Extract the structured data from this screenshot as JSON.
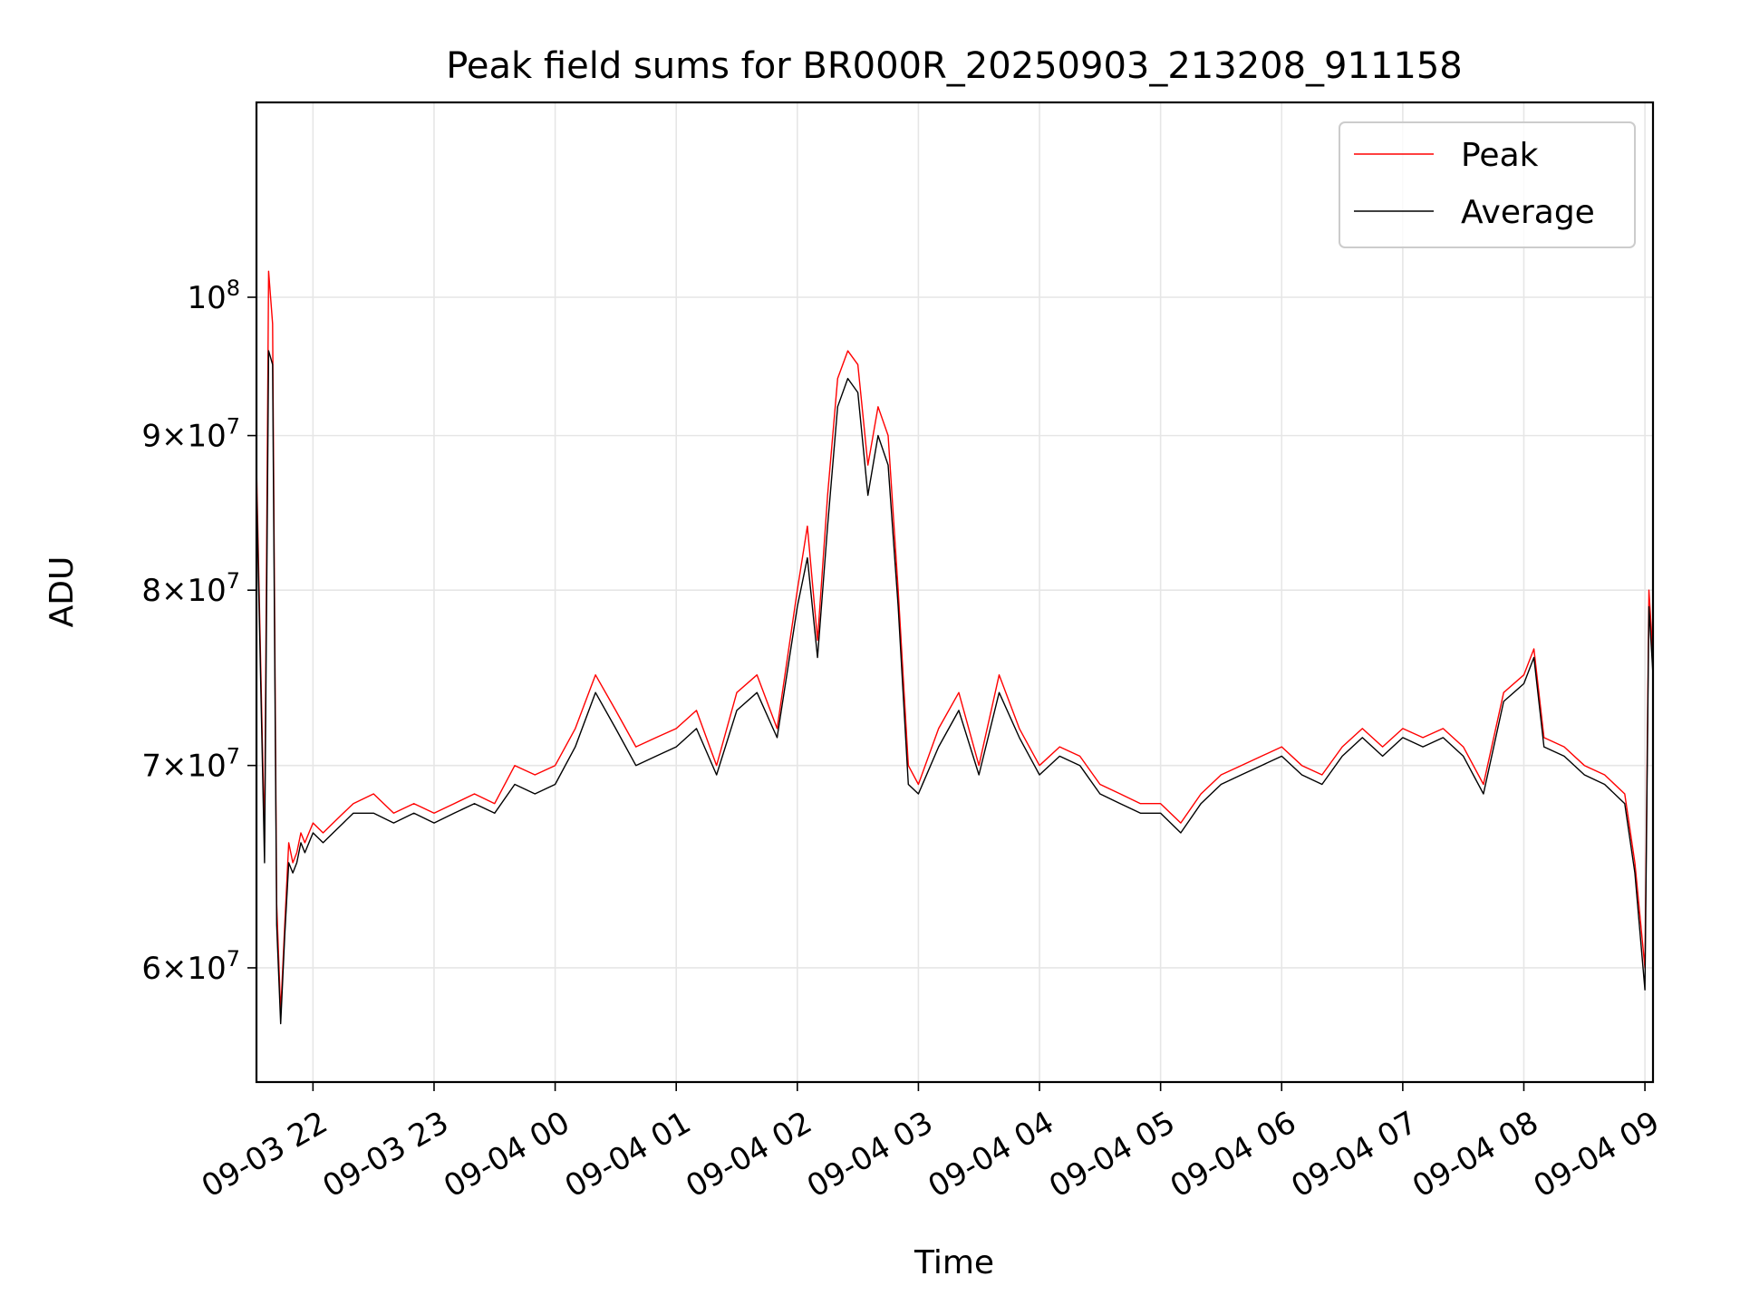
{
  "chart_data": {
    "type": "line",
    "title": "Peak field sums for BR000R_20250903_213208_911158",
    "xlabel": "Time",
    "ylabel": "ADU",
    "yscale": "log",
    "grid": true,
    "legend_position": "upper right",
    "xlim": [
      "2025-09-03 21:32",
      "2025-09-04 09:04"
    ],
    "ylim": [
      55000000,
      116000000
    ],
    "x_ticks": [
      {
        "t": "2025-09-03 22:00",
        "label": "09-03 22"
      },
      {
        "t": "2025-09-03 23:00",
        "label": "09-03 23"
      },
      {
        "t": "2025-09-04 00:00",
        "label": "09-04 00"
      },
      {
        "t": "2025-09-04 01:00",
        "label": "09-04 01"
      },
      {
        "t": "2025-09-04 02:00",
        "label": "09-04 02"
      },
      {
        "t": "2025-09-04 03:00",
        "label": "09-04 03"
      },
      {
        "t": "2025-09-04 04:00",
        "label": "09-04 04"
      },
      {
        "t": "2025-09-04 05:00",
        "label": "09-04 05"
      },
      {
        "t": "2025-09-04 06:00",
        "label": "09-04 06"
      },
      {
        "t": "2025-09-04 07:00",
        "label": "09-04 07"
      },
      {
        "t": "2025-09-04 08:00",
        "label": "09-04 08"
      },
      {
        "t": "2025-09-04 09:00",
        "label": "09-04 09"
      }
    ],
    "y_ticks": [
      {
        "value": 60000000,
        "mant": "6",
        "exp": "7"
      },
      {
        "value": 70000000,
        "mant": "7",
        "exp": "7"
      },
      {
        "value": 80000000,
        "mant": "8",
        "exp": "7"
      },
      {
        "value": 90000000,
        "mant": "9",
        "exp": "7"
      },
      {
        "value": 100000000,
        "mant": "",
        "exp": "8"
      }
    ],
    "series": [
      {
        "name": "Peak",
        "color": "#ff0000",
        "x": [
          "2025-09-03 21:32",
          "2025-09-03 21:34",
          "2025-09-03 21:36",
          "2025-09-03 21:38",
          "2025-09-03 21:40",
          "2025-09-03 21:42",
          "2025-09-03 21:44",
          "2025-09-03 21:46",
          "2025-09-03 21:48",
          "2025-09-03 21:50",
          "2025-09-03 21:52",
          "2025-09-03 21:54",
          "2025-09-03 21:56",
          "2025-09-03 22:00",
          "2025-09-03 22:05",
          "2025-09-03 22:10",
          "2025-09-03 22:15",
          "2025-09-03 22:20",
          "2025-09-03 22:30",
          "2025-09-03 22:40",
          "2025-09-03 22:50",
          "2025-09-03 23:00",
          "2025-09-03 23:10",
          "2025-09-03 23:20",
          "2025-09-03 23:30",
          "2025-09-03 23:40",
          "2025-09-03 23:50",
          "2025-09-04 00:00",
          "2025-09-04 00:10",
          "2025-09-04 00:20",
          "2025-09-04 00:30",
          "2025-09-04 00:40",
          "2025-09-04 00:50",
          "2025-09-04 01:00",
          "2025-09-04 01:10",
          "2025-09-04 01:20",
          "2025-09-04 01:30",
          "2025-09-04 01:40",
          "2025-09-04 01:50",
          "2025-09-04 02:00",
          "2025-09-04 02:05",
          "2025-09-04 02:10",
          "2025-09-04 02:15",
          "2025-09-04 02:20",
          "2025-09-04 02:25",
          "2025-09-04 02:30",
          "2025-09-04 02:35",
          "2025-09-04 02:40",
          "2025-09-04 02:45",
          "2025-09-04 02:50",
          "2025-09-04 02:55",
          "2025-09-04 03:00",
          "2025-09-04 03:10",
          "2025-09-04 03:20",
          "2025-09-04 03:30",
          "2025-09-04 03:40",
          "2025-09-04 03:50",
          "2025-09-04 04:00",
          "2025-09-04 04:10",
          "2025-09-04 04:20",
          "2025-09-04 04:30",
          "2025-09-04 04:40",
          "2025-09-04 04:50",
          "2025-09-04 05:00",
          "2025-09-04 05:10",
          "2025-09-04 05:20",
          "2025-09-04 05:30",
          "2025-09-04 05:40",
          "2025-09-04 05:50",
          "2025-09-04 06:00",
          "2025-09-04 06:10",
          "2025-09-04 06:20",
          "2025-09-04 06:30",
          "2025-09-04 06:40",
          "2025-09-04 06:50",
          "2025-09-04 07:00",
          "2025-09-04 07:10",
          "2025-09-04 07:20",
          "2025-09-04 07:30",
          "2025-09-04 07:40",
          "2025-09-04 07:50",
          "2025-09-04 08:00",
          "2025-09-04 08:05",
          "2025-09-04 08:10",
          "2025-09-04 08:20",
          "2025-09-04 08:30",
          "2025-09-04 08:40",
          "2025-09-04 08:50",
          "2025-09-04 08:55",
          "2025-09-04 09:00",
          "2025-09-04 09:02",
          "2025-09-04 09:04"
        ],
        "values": [
          88000000,
          76000000,
          66000000,
          102000000,
          98000000,
          63000000,
          58000000,
          62000000,
          66000000,
          65000000,
          65500000,
          66500000,
          66000000,
          67000000,
          66500000,
          67000000,
          67500000,
          68000000,
          68500000,
          67500000,
          68000000,
          67500000,
          68000000,
          68500000,
          68000000,
          70000000,
          69500000,
          70000000,
          72000000,
          75000000,
          73000000,
          71000000,
          71500000,
          72000000,
          73000000,
          70000000,
          74000000,
          75000000,
          72000000,
          80000000,
          84000000,
          77000000,
          86000000,
          94000000,
          96000000,
          95000000,
          88000000,
          92000000,
          90000000,
          80000000,
          70000000,
          69000000,
          72000000,
          74000000,
          70000000,
          75000000,
          72000000,
          70000000,
          71000000,
          70500000,
          69000000,
          68500000,
          68000000,
          68000000,
          67000000,
          68500000,
          69500000,
          70000000,
          70500000,
          71000000,
          70000000,
          69500000,
          71000000,
          72000000,
          71000000,
          72000000,
          71500000,
          72000000,
          71000000,
          69000000,
          74000000,
          75000000,
          76500000,
          71500000,
          71000000,
          70000000,
          69500000,
          68500000,
          65000000,
          60000000,
          80000000,
          76000000
        ]
      },
      {
        "name": "Average",
        "color": "#000000",
        "x": [
          "2025-09-03 21:32",
          "2025-09-03 21:34",
          "2025-09-03 21:36",
          "2025-09-03 21:38",
          "2025-09-03 21:40",
          "2025-09-03 21:42",
          "2025-09-03 21:44",
          "2025-09-03 21:46",
          "2025-09-03 21:48",
          "2025-09-03 21:50",
          "2025-09-03 21:52",
          "2025-09-03 21:54",
          "2025-09-03 21:56",
          "2025-09-03 22:00",
          "2025-09-03 22:05",
          "2025-09-03 22:10",
          "2025-09-03 22:15",
          "2025-09-03 22:20",
          "2025-09-03 22:30",
          "2025-09-03 22:40",
          "2025-09-03 22:50",
          "2025-09-03 23:00",
          "2025-09-03 23:10",
          "2025-09-03 23:20",
          "2025-09-03 23:30",
          "2025-09-03 23:40",
          "2025-09-03 23:50",
          "2025-09-04 00:00",
          "2025-09-04 00:10",
          "2025-09-04 00:20",
          "2025-09-04 00:30",
          "2025-09-04 00:40",
          "2025-09-04 00:50",
          "2025-09-04 01:00",
          "2025-09-04 01:10",
          "2025-09-04 01:20",
          "2025-09-04 01:30",
          "2025-09-04 01:40",
          "2025-09-04 01:50",
          "2025-09-04 02:00",
          "2025-09-04 02:05",
          "2025-09-04 02:10",
          "2025-09-04 02:15",
          "2025-09-04 02:20",
          "2025-09-04 02:25",
          "2025-09-04 02:30",
          "2025-09-04 02:35",
          "2025-09-04 02:40",
          "2025-09-04 02:45",
          "2025-09-04 02:50",
          "2025-09-04 02:55",
          "2025-09-04 03:00",
          "2025-09-04 03:10",
          "2025-09-04 03:20",
          "2025-09-04 03:30",
          "2025-09-04 03:40",
          "2025-09-04 03:50",
          "2025-09-04 04:00",
          "2025-09-04 04:10",
          "2025-09-04 04:20",
          "2025-09-04 04:30",
          "2025-09-04 04:40",
          "2025-09-04 04:50",
          "2025-09-04 05:00",
          "2025-09-04 05:10",
          "2025-09-04 05:20",
          "2025-09-04 05:30",
          "2025-09-04 05:40",
          "2025-09-04 05:50",
          "2025-09-04 06:00",
          "2025-09-04 06:10",
          "2025-09-04 06:20",
          "2025-09-04 06:30",
          "2025-09-04 06:40",
          "2025-09-04 06:50",
          "2025-09-04 07:00",
          "2025-09-04 07:10",
          "2025-09-04 07:20",
          "2025-09-04 07:30",
          "2025-09-04 07:40",
          "2025-09-04 07:50",
          "2025-09-04 08:00",
          "2025-09-04 08:05",
          "2025-09-04 08:10",
          "2025-09-04 08:20",
          "2025-09-04 08:30",
          "2025-09-04 08:40",
          "2025-09-04 08:50",
          "2025-09-04 08:55",
          "2025-09-04 09:00",
          "2025-09-04 09:02",
          "2025-09-04 09:04"
        ],
        "values": [
          87000000,
          75000000,
          65000000,
          96000000,
          95000000,
          62000000,
          57500000,
          61500000,
          65000000,
          64500000,
          65000000,
          66000000,
          65500000,
          66500000,
          66000000,
          66500000,
          67000000,
          67500000,
          67500000,
          67000000,
          67500000,
          67000000,
          67500000,
          68000000,
          67500000,
          69000000,
          68500000,
          69000000,
          71000000,
          74000000,
          72000000,
          70000000,
          70500000,
          71000000,
          72000000,
          69500000,
          73000000,
          74000000,
          71500000,
          79000000,
          82000000,
          76000000,
          84000000,
          92000000,
          94000000,
          93000000,
          86000000,
          90000000,
          88000000,
          79000000,
          69000000,
          68500000,
          71000000,
          73000000,
          69500000,
          74000000,
          71500000,
          69500000,
          70500000,
          70000000,
          68500000,
          68000000,
          67500000,
          67500000,
          66500000,
          68000000,
          69000000,
          69500000,
          70000000,
          70500000,
          69500000,
          69000000,
          70500000,
          71500000,
          70500000,
          71500000,
          71000000,
          71500000,
          70500000,
          68500000,
          73500000,
          74500000,
          76000000,
          71000000,
          70500000,
          69500000,
          69000000,
          68000000,
          64500000,
          59000000,
          79000000,
          75000000
        ]
      }
    ]
  }
}
